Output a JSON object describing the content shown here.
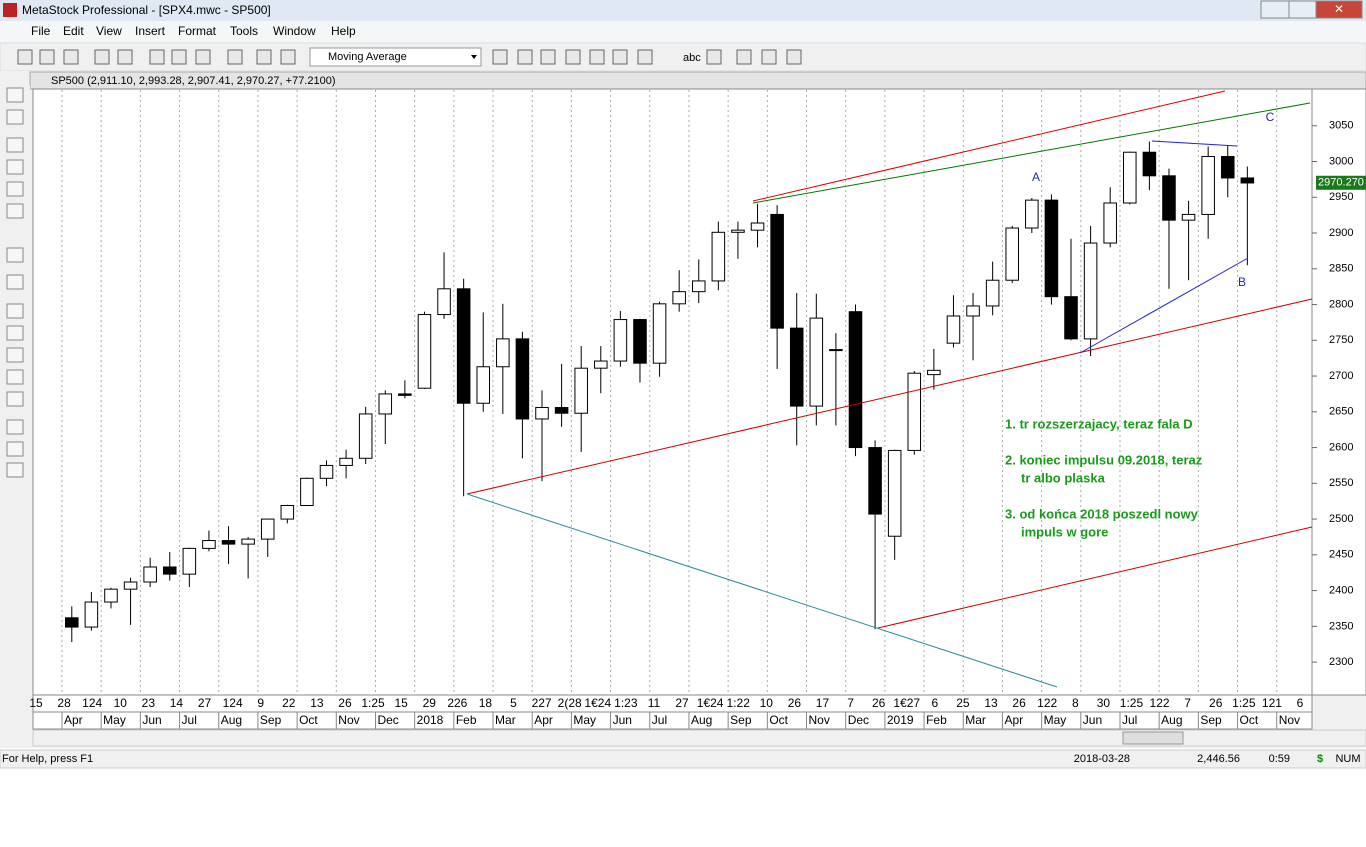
{
  "window": {
    "title": "MetaStock Professional - [SPX4.mwc - SP500]"
  },
  "menu": [
    "File",
    "Edit",
    "View",
    "Insert",
    "Format",
    "Tools",
    "Window",
    "Help"
  ],
  "toolbar": {
    "indicator": "Moving Average",
    "text_tool": "abc"
  },
  "chart_window": {
    "header": "SP500 (2,911.10, 2,993.28, 2,907.41, 2,970.27, +77.2100)"
  },
  "chart_data": {
    "type": "candlestick",
    "x": [
      1.25,
      1.75,
      2.25,
      2.75,
      3.25,
      3.75,
      4.25,
      4.75,
      5.25,
      5.75,
      6.25,
      6.75,
      7.25,
      7.75,
      8.25,
      8.75,
      9.25,
      9.75,
      10.25,
      10.75,
      11.25,
      11.75,
      12.25,
      12.75,
      13.25,
      13.75,
      14.25,
      14.75,
      15.25,
      15.75,
      16.25,
      16.75,
      17.25,
      17.75,
      18.25,
      18.75,
      19.25,
      19.75,
      20.25,
      20.75,
      21.25,
      21.75,
      22.25,
      22.75,
      23.25,
      23.75,
      24.25,
      24.75,
      25.25,
      25.75,
      26.25,
      26.75,
      27.25,
      27.75,
      28.25,
      28.75,
      29.25,
      29.75,
      30.25,
      30.75,
      31.25
    ],
    "open": [
      2362,
      2349,
      2384,
      2402,
      2412,
      2433,
      2423,
      2459,
      2470,
      2465,
      2472,
      2500,
      2519,
      2557,
      2575,
      2585,
      2647,
      2675,
      2683,
      2786,
      2822,
      2662,
      2713,
      2752,
      2640,
      2656,
      2648,
      2711,
      2721,
      2779,
      2718,
      2801,
      2818,
      2833,
      2901,
      2904,
      2926,
      2767,
      2658,
      2736,
      2790,
      2600,
      2476,
      2596,
      2702,
      2746,
      2784,
      2798,
      2834,
      2907,
      2946,
      2811,
      2752,
      2886,
      2942,
      3013,
      2980,
      2918,
      2926,
      3007,
      2977
    ],
    "high": [
      2378,
      2398,
      2404,
      2418,
      2446,
      2454,
      2460,
      2484,
      2490,
      2475,
      2500,
      2520,
      2558,
      2582,
      2597,
      2657,
      2680,
      2694,
      2790,
      2873,
      2836,
      2789,
      2801,
      2762,
      2680,
      2717,
      2742,
      2742,
      2791,
      2780,
      2804,
      2848,
      2863,
      2916,
      2916,
      2941,
      2939,
      2816,
      2815,
      2760,
      2800,
      2610,
      2597,
      2707,
      2738,
      2813,
      2816,
      2860,
      2910,
      2949,
      2954,
      2892,
      2910,
      2964,
      3014,
      3028,
      2990,
      2945,
      3021,
      3022,
      2993
    ],
    "low": [
      2328,
      2344,
      2375,
      2352,
      2405,
      2414,
      2405,
      2455,
      2437,
      2417,
      2447,
      2494,
      2519,
      2546,
      2557,
      2577,
      2605,
      2669,
      2682,
      2780,
      2532,
      2650,
      2647,
      2585,
      2553,
      2629,
      2594,
      2676,
      2713,
      2691,
      2699,
      2790,
      2802,
      2820,
      2864,
      2880,
      2710,
      2603,
      2631,
      2631,
      2588,
      2346,
      2443,
      2590,
      2681,
      2740,
      2722,
      2785,
      2830,
      2900,
      2800,
      2750,
      2728,
      2880,
      2940,
      2960,
      2822,
      2834,
      2892,
      2950,
      2855
    ],
    "close": [
      2349,
      2384,
      2402,
      2412,
      2433,
      2423,
      2459,
      2470,
      2465,
      2472,
      2500,
      2519,
      2557,
      2575,
      2585,
      2647,
      2675,
      2673,
      2786,
      2822,
      2662,
      2713,
      2752,
      2640,
      2656,
      2648,
      2711,
      2721,
      2779,
      2718,
      2801,
      2818,
      2833,
      2901,
      2904,
      2914,
      2767,
      2658,
      2781,
      2737,
      2600,
      2507,
      2596,
      2704,
      2708,
      2784,
      2798,
      2834,
      2907,
      2946,
      2811,
      2752,
      2886,
      2942,
      3013,
      2980,
      2918,
      2926,
      3007,
      2977,
      2970
    ],
    "up_color": "#ffffff",
    "down_color": "#000000",
    "grid": true,
    "xlim": [
      0.26,
      32.9
    ],
    "xticks": [
      {
        "value": 1,
        "label": "Apr"
      },
      {
        "value": 2,
        "label": "May"
      },
      {
        "value": 3,
        "label": "Jun"
      },
      {
        "value": 4,
        "label": "Jul"
      },
      {
        "value": 5,
        "label": "Aug"
      },
      {
        "value": 6,
        "label": "Sep"
      },
      {
        "value": 7,
        "label": "Oct"
      },
      {
        "value": 8,
        "label": "Nov"
      },
      {
        "value": 9,
        "label": "Dec"
      },
      {
        "value": 10,
        "label": "2018"
      },
      {
        "value": 11,
        "label": "Feb"
      },
      {
        "value": 12,
        "label": "Mar"
      },
      {
        "value": 13,
        "label": "Apr"
      },
      {
        "value": 14,
        "label": "May"
      },
      {
        "value": 15,
        "label": "Jun"
      },
      {
        "value": 16,
        "label": "Jul"
      },
      {
        "value": 17,
        "label": "Aug"
      },
      {
        "value": 18,
        "label": "Sep"
      },
      {
        "value": 19,
        "label": "Oct"
      },
      {
        "value": 20,
        "label": "Nov"
      },
      {
        "value": 21,
        "label": "Dec"
      },
      {
        "value": 22,
        "label": "2019"
      },
      {
        "value": 23,
        "label": "Feb"
      },
      {
        "value": 24,
        "label": "Mar"
      },
      {
        "value": 25,
        "label": "Apr"
      },
      {
        "value": 26,
        "label": "May"
      },
      {
        "value": 27,
        "label": "Jun"
      },
      {
        "value": 28,
        "label": "Jul"
      },
      {
        "value": 29,
        "label": "Aug"
      },
      {
        "value": 30,
        "label": "Sep"
      },
      {
        "value": 31,
        "label": "Oct"
      },
      {
        "value": 32,
        "label": "Nov"
      }
    ],
    "day_labels": [
      "15",
      "28",
      "124",
      "10",
      "23",
      "14",
      "27",
      "124",
      "9",
      "22",
      "13",
      "26",
      "1:25",
      "15",
      "29",
      "226",
      "18",
      "5",
      "227",
      "2(28",
      "1€24",
      "1:23",
      "11",
      "27",
      "1€24",
      "1:22",
      "10",
      "26",
      "17",
      "7",
      "26",
      "1€27",
      "6",
      "25",
      "13",
      "26",
      "122",
      "8",
      "30",
      "1:25",
      "122",
      "7",
      "26",
      "1:25",
      "121",
      "6"
    ],
    "ylim": [
      2254,
      3100
    ],
    "yticks": [
      2300,
      2350,
      2400,
      2450,
      2500,
      2550,
      2600,
      2650,
      2700,
      2750,
      2800,
      2850,
      2900,
      2950,
      3000,
      3050
    ],
    "last_price": {
      "value": 2970.27,
      "label": "2970.270"
    },
    "wave_labels": [
      "A",
      "B",
      "C"
    ],
    "notes": [
      "1. tr rozszerzajacy, teraz fala D",
      "2. koniec impulsu 09.2018, teraz",
      "tr albo plaska",
      "3. od końca 2018 poszedl nowy",
      "impuls w gore"
    ]
  },
  "status_bar": {
    "help": "For Help, press F1",
    "date": "2018-03-28",
    "price": "2,446.56",
    "time": "0:59",
    "currency": "$",
    "num": "NUM"
  }
}
